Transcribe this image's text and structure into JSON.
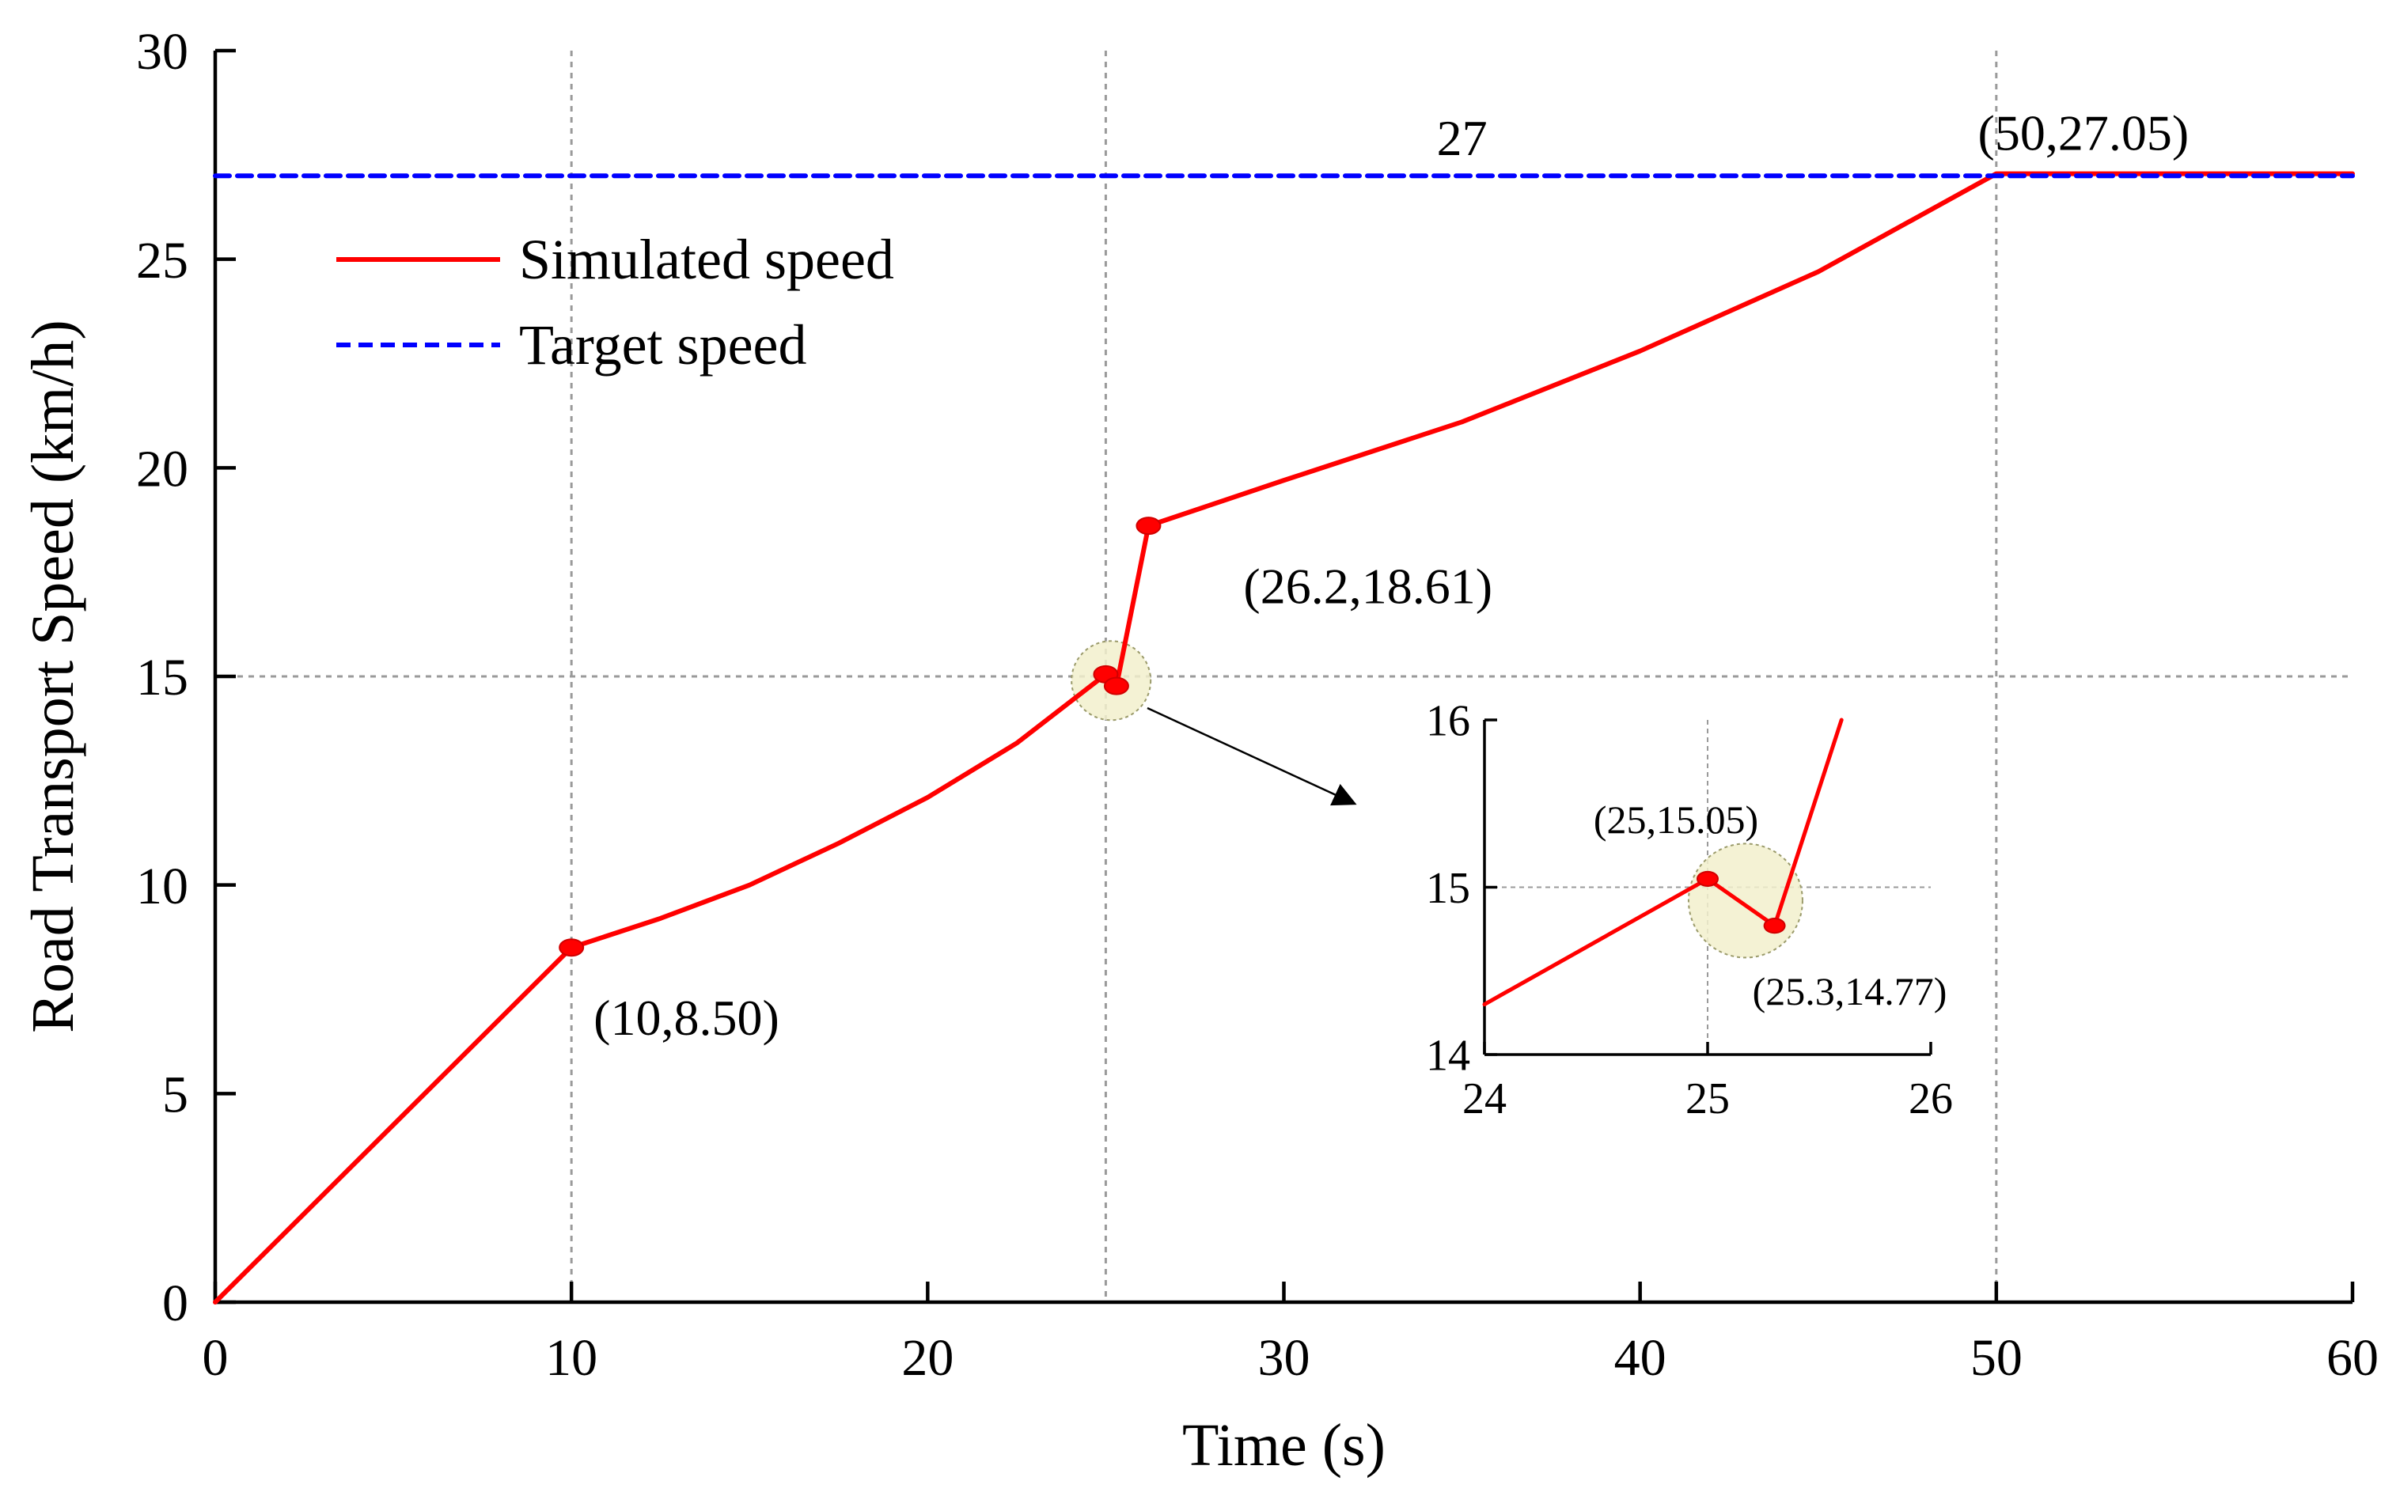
{
  "chart_data": [
    {
      "type": "line",
      "title": "",
      "xlabel": "Time (s)",
      "ylabel": "Road Transport Speed (km/h)",
      "xlim": [
        0,
        60
      ],
      "ylim": [
        0,
        30
      ],
      "xticks": [
        0,
        10,
        20,
        30,
        40,
        50,
        60
      ],
      "yticks": [
        0,
        5,
        10,
        15,
        20,
        25,
        30
      ],
      "xtick_labels": [
        "0",
        "10",
        "20",
        "30",
        "40",
        "50",
        "60"
      ],
      "ytick_labels": [
        "0",
        "5",
        "10",
        "15",
        "20",
        "25",
        "30"
      ],
      "grid_x": [
        10,
        25,
        50
      ],
      "grid_y": [
        15
      ],
      "legend": {
        "placement": "top-left",
        "entries": [
          "Simulated speed",
          "Target speed"
        ]
      },
      "series": [
        {
          "name": "Simulated speed",
          "color": "#ff0000",
          "style": "solid",
          "x": [
            0,
            10,
            12.5,
            15,
            17.5,
            20,
            22.5,
            25,
            25.3,
            26.2,
            30,
            35,
            40,
            45,
            50,
            55,
            60
          ],
          "y": [
            0,
            8.5,
            9.2,
            10.0,
            11.0,
            12.1,
            13.4,
            15.05,
            14.77,
            18.61,
            19.7,
            21.1,
            22.8,
            24.7,
            27.05,
            27.05,
            27.05
          ]
        },
        {
          "name": "Target speed",
          "color": "#0000ff",
          "style": "dashed",
          "x": [
            0,
            60
          ],
          "y": [
            27,
            27
          ]
        }
      ],
      "markers": [
        {
          "x": 10,
          "y": 8.5
        },
        {
          "x": 25,
          "y": 15.05
        },
        {
          "x": 25.3,
          "y": 14.77
        },
        {
          "x": 26.2,
          "y": 18.61
        }
      ],
      "highlight": {
        "x": 25.15,
        "y": 14.9
      },
      "annotations": [
        {
          "text": "(10,8.50)",
          "x": 10,
          "y": 8.5,
          "pos": "below-right"
        },
        {
          "text": "(26.2,18.61)",
          "x": 26.2,
          "y": 18.61,
          "pos": "right"
        },
        {
          "text": "(50,27.05)",
          "x": 50,
          "y": 27.05,
          "pos": "above"
        },
        {
          "text": "27",
          "x": 35,
          "y": 27,
          "pos": "above"
        }
      ]
    },
    {
      "type": "line",
      "title": "",
      "xlabel": "",
      "ylabel": "",
      "xlim": [
        24,
        26
      ],
      "ylim": [
        14,
        16
      ],
      "xticks": [
        24,
        25,
        26
      ],
      "yticks": [
        14,
        15,
        16
      ],
      "xtick_labels": [
        "24",
        "25",
        "26"
      ],
      "ytick_labels": [
        "14",
        "15",
        "16"
      ],
      "grid_x": [
        25
      ],
      "grid_y": [
        15
      ],
      "series": [
        {
          "name": "Simulated speed",
          "color": "#ff0000",
          "style": "solid",
          "x": [
            24,
            25,
            25.3,
            25.6
          ],
          "y": [
            14.3,
            15.05,
            14.77,
            16.0
          ]
        }
      ],
      "markers": [
        {
          "x": 25.0,
          "y": 15.05
        },
        {
          "x": 25.3,
          "y": 14.77
        }
      ],
      "highlight": {
        "x": 25.17,
        "y": 14.92
      },
      "annotations": [
        {
          "text": "(25,15.05)",
          "x": 25.0,
          "y": 15.05,
          "pos": "above-left"
        },
        {
          "text": "(25.3,14.77)",
          "x": 25.3,
          "y": 14.77,
          "pos": "below-right"
        }
      ]
    }
  ]
}
